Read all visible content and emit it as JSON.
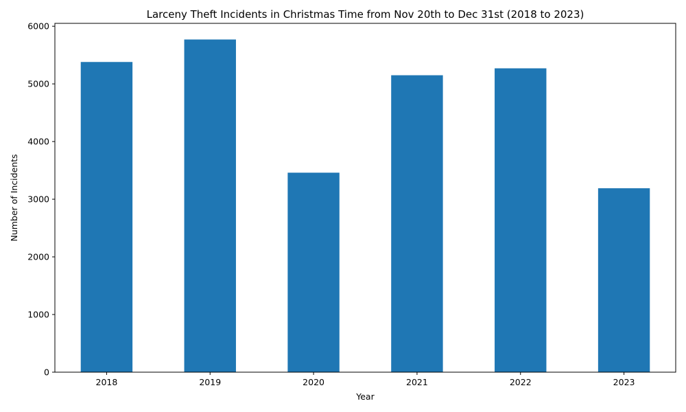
{
  "chart_data": {
    "type": "bar",
    "title": "Larceny Theft Incidents in Christmas Time from Nov 20th to Dec 31st (2018 to 2023)",
    "xlabel": "Year",
    "ylabel": "Number of Incidents",
    "categories": [
      "2018",
      "2019",
      "2020",
      "2021",
      "2022",
      "2023"
    ],
    "values": [
      5380,
      5770,
      3460,
      5150,
      5270,
      3190
    ],
    "ylim": [
      0,
      6050
    ],
    "yticks": [
      0,
      1000,
      2000,
      3000,
      4000,
      5000,
      6000
    ],
    "bar_color": "#1f77b4",
    "grid": false,
    "legend": "none"
  }
}
